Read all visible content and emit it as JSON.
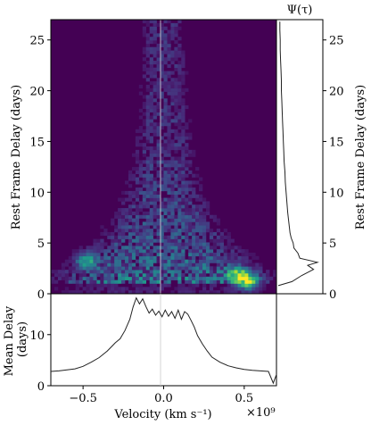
{
  "chart_data": [
    {
      "type": "heatmap",
      "panel": "transfer-function",
      "title": "",
      "xlabel": "",
      "ylabel": "Rest Frame Delay (days)",
      "xlim": [
        -0.7,
        0.7
      ],
      "ylim": [
        0,
        27
      ],
      "xticks": [
        -0.5,
        0.0,
        0.5
      ],
      "yticks": [
        0,
        5,
        10,
        15,
        20,
        25
      ],
      "ytick_labels": [
        "0",
        "5",
        "10",
        "15",
        "20",
        "25"
      ],
      "colormap": "viridis",
      "background_color": "#440154",
      "reference_line_x": 0.0,
      "description_hot_spots": [
        {
          "x": 0.52,
          "y": 1.3,
          "intensity": 1.0
        },
        {
          "x": 0.45,
          "y": 2.0,
          "intensity": 0.7
        },
        {
          "x": -0.48,
          "y": 3.3,
          "intensity": 0.6
        }
      ]
    },
    {
      "type": "line",
      "panel": "delay-distribution",
      "title": "Ψ(τ)",
      "ylabel": "Rest Frame Delay (days)",
      "ylim": [
        0,
        27
      ],
      "yticks": [
        0,
        5,
        10,
        15,
        20,
        25
      ],
      "ytick_labels": [
        "0",
        "5",
        "10",
        "15",
        "20",
        "25"
      ],
      "delay": [
        0.8,
        1.2,
        1.8,
        2.4,
        2.8,
        3.1,
        3.5,
        4.0,
        4.5,
        5.0,
        5.5,
        6.0,
        7.0,
        8.0,
        9.0,
        10.0,
        11.0,
        12.0,
        13.0,
        14.0,
        15.0,
        16.0,
        17.0,
        18.0,
        19.0,
        20.0,
        21.0,
        22.0,
        23.0,
        24.0,
        25.0,
        26.0,
        26.8
      ],
      "psi": [
        0.0,
        0.35,
        0.6,
        0.9,
        0.75,
        1.0,
        0.55,
        0.5,
        0.4,
        0.38,
        0.33,
        0.3,
        0.27,
        0.24,
        0.22,
        0.2,
        0.18,
        0.17,
        0.15,
        0.14,
        0.13,
        0.12,
        0.11,
        0.1,
        0.09,
        0.08,
        0.08,
        0.07,
        0.06,
        0.05,
        0.05,
        0.04,
        0.04
      ]
    },
    {
      "type": "line",
      "panel": "mean-delay",
      "ylabel": "Mean Delay (days)",
      "xlabel": "Velocity (km s⁻¹)",
      "x_exponent_label": "×10⁹",
      "xlim": [
        -0.7,
        0.7
      ],
      "ylim": [
        0,
        18
      ],
      "xticks": [
        -0.5,
        0.0,
        0.5
      ],
      "xtick_labels": [
        "−0.5",
        "0.0",
        "0.5"
      ],
      "yticks": [
        0,
        10
      ],
      "ytick_labels": [
        "0",
        "10"
      ],
      "x": [
        -0.7,
        -0.65,
        -0.6,
        -0.55,
        -0.5,
        -0.45,
        -0.4,
        -0.35,
        -0.3,
        -0.27,
        -0.24,
        -0.21,
        -0.19,
        -0.17,
        -0.15,
        -0.13,
        -0.11,
        -0.09,
        -0.07,
        -0.05,
        -0.03,
        -0.01,
        0.01,
        0.03,
        0.05,
        0.07,
        0.09,
        0.11,
        0.13,
        0.15,
        0.17,
        0.19,
        0.21,
        0.24,
        0.27,
        0.3,
        0.35,
        0.4,
        0.45,
        0.5,
        0.55,
        0.6,
        0.65,
        0.68,
        0.7
      ],
      "y": [
        2.8,
        2.9,
        3.1,
        3.3,
        3.8,
        4.6,
        5.5,
        6.8,
        8.4,
        9.2,
        10.8,
        13.0,
        15.4,
        17.2,
        16.0,
        17.0,
        15.5,
        14.2,
        15.0,
        13.8,
        14.6,
        13.5,
        14.8,
        13.6,
        14.5,
        13.2,
        14.8,
        13.0,
        14.5,
        14.0,
        12.8,
        11.5,
        9.8,
        8.2,
        6.8,
        5.6,
        4.6,
        3.9,
        3.5,
        3.2,
        3.0,
        2.9,
        2.8,
        0.5,
        2.2
      ]
    }
  ]
}
